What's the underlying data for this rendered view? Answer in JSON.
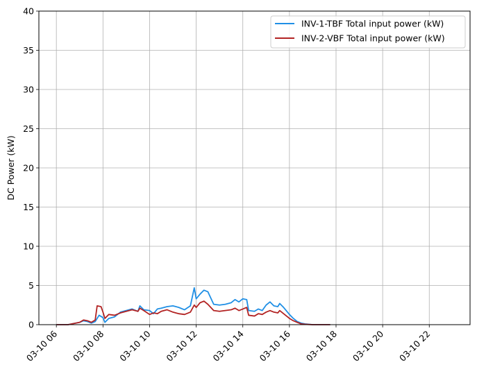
{
  "chart_data": {
    "type": "line",
    "title": "",
    "xlabel": "",
    "ylabel": "DC Power (kW)",
    "xlim": [
      "03-10 05:15",
      "03-10 23:45"
    ],
    "ylim": [
      0,
      40
    ],
    "yticks": [
      0,
      5,
      10,
      15,
      20,
      25,
      30,
      35,
      40
    ],
    "xticks": [
      {
        "t": "03-10 06:00",
        "label": "03-10 06"
      },
      {
        "t": "03-10 08:00",
        "label": "03-10 08"
      },
      {
        "t": "03-10 10:00",
        "label": "03-10 10"
      },
      {
        "t": "03-10 12:00",
        "label": "03-10 12"
      },
      {
        "t": "03-10 14:00",
        "label": "03-10 14"
      },
      {
        "t": "03-10 16:00",
        "label": "03-10 16"
      },
      {
        "t": "03-10 18:00",
        "label": "03-10 18"
      },
      {
        "t": "03-10 20:00",
        "label": "03-10 20"
      },
      {
        "t": "03-10 22:00",
        "label": "03-10 22"
      }
    ],
    "grid": true,
    "legend_position": "top-right",
    "series": [
      {
        "name": "INV-1-TBF Total input power (kW)",
        "color": "#1f8fe5",
        "points": [
          [
            "03-10 06:00",
            0
          ],
          [
            "03-10 06:30",
            0
          ],
          [
            "03-10 07:00",
            0.3
          ],
          [
            "03-10 07:10",
            0.5
          ],
          [
            "03-10 07:20",
            0.4
          ],
          [
            "03-10 07:30",
            0.2
          ],
          [
            "03-10 07:40",
            0.4
          ],
          [
            "03-10 07:50",
            1.2
          ],
          [
            "03-10 08:00",
            0.9
          ],
          [
            "03-10 08:05",
            0.3
          ],
          [
            "03-10 08:15",
            0.8
          ],
          [
            "03-10 08:30",
            1.0
          ],
          [
            "03-10 08:45",
            1.6
          ],
          [
            "03-10 09:00",
            1.8
          ],
          [
            "03-10 09:15",
            2.0
          ],
          [
            "03-10 09:30",
            1.7
          ],
          [
            "03-10 09:35",
            2.4
          ],
          [
            "03-10 09:45",
            1.9
          ],
          [
            "03-10 10:00",
            1.8
          ],
          [
            "03-10 10:10",
            1.4
          ],
          [
            "03-10 10:20",
            2.0
          ],
          [
            "03-10 10:30",
            2.1
          ],
          [
            "03-10 10:45",
            2.3
          ],
          [
            "03-10 11:00",
            2.4
          ],
          [
            "03-10 11:15",
            2.2
          ],
          [
            "03-10 11:30",
            1.9
          ],
          [
            "03-10 11:45",
            2.4
          ],
          [
            "03-10 11:55",
            4.7
          ],
          [
            "03-10 12:00",
            3.3
          ],
          [
            "03-10 12:10",
            3.9
          ],
          [
            "03-10 12:20",
            4.4
          ],
          [
            "03-10 12:30",
            4.2
          ],
          [
            "03-10 12:45",
            2.6
          ],
          [
            "03-10 13:00",
            2.5
          ],
          [
            "03-10 13:15",
            2.6
          ],
          [
            "03-10 13:30",
            2.8
          ],
          [
            "03-10 13:40",
            3.2
          ],
          [
            "03-10 13:50",
            2.9
          ],
          [
            "03-10 14:00",
            3.3
          ],
          [
            "03-10 14:10",
            3.2
          ],
          [
            "03-10 14:15",
            1.8
          ],
          [
            "03-10 14:30",
            1.7
          ],
          [
            "03-10 14:40",
            2.0
          ],
          [
            "03-10 14:50",
            1.8
          ],
          [
            "03-10 15:00",
            2.5
          ],
          [
            "03-10 15:10",
            2.9
          ],
          [
            "03-10 15:20",
            2.4
          ],
          [
            "03-10 15:30",
            2.3
          ],
          [
            "03-10 15:35",
            2.7
          ],
          [
            "03-10 15:45",
            2.2
          ],
          [
            "03-10 16:00",
            1.3
          ],
          [
            "03-10 16:10",
            0.8
          ],
          [
            "03-10 16:20",
            0.4
          ],
          [
            "03-10 16:30",
            0.2
          ],
          [
            "03-10 16:40",
            0.1
          ],
          [
            "03-10 17:00",
            0
          ],
          [
            "03-10 17:45",
            0
          ]
        ]
      },
      {
        "name": "INV-2-VBF Total input power (kW)",
        "color": "#b22222",
        "points": [
          [
            "03-10 06:00",
            0
          ],
          [
            "03-10 06:30",
            0
          ],
          [
            "03-10 07:00",
            0.3
          ],
          [
            "03-10 07:10",
            0.6
          ],
          [
            "03-10 07:20",
            0.5
          ],
          [
            "03-10 07:30",
            0.3
          ],
          [
            "03-10 07:40",
            0.6
          ],
          [
            "03-10 07:45",
            2.4
          ],
          [
            "03-10 07:55",
            2.3
          ],
          [
            "03-10 08:00",
            1.6
          ],
          [
            "03-10 08:05",
            0.8
          ],
          [
            "03-10 08:15",
            1.3
          ],
          [
            "03-10 08:30",
            1.2
          ],
          [
            "03-10 08:45",
            1.5
          ],
          [
            "03-10 09:00",
            1.7
          ],
          [
            "03-10 09:15",
            1.9
          ],
          [
            "03-10 09:30",
            1.7
          ],
          [
            "03-10 09:35",
            2.1
          ],
          [
            "03-10 09:45",
            1.8
          ],
          [
            "03-10 10:00",
            1.3
          ],
          [
            "03-10 10:10",
            1.5
          ],
          [
            "03-10 10:20",
            1.4
          ],
          [
            "03-10 10:30",
            1.7
          ],
          [
            "03-10 10:45",
            1.9
          ],
          [
            "03-10 11:00",
            1.6
          ],
          [
            "03-10 11:15",
            1.4
          ],
          [
            "03-10 11:30",
            1.3
          ],
          [
            "03-10 11:45",
            1.6
          ],
          [
            "03-10 11:55",
            2.5
          ],
          [
            "03-10 12:00",
            2.2
          ],
          [
            "03-10 12:10",
            2.8
          ],
          [
            "03-10 12:20",
            3.0
          ],
          [
            "03-10 12:30",
            2.6
          ],
          [
            "03-10 12:45",
            1.8
          ],
          [
            "03-10 13:00",
            1.7
          ],
          [
            "03-10 13:15",
            1.8
          ],
          [
            "03-10 13:30",
            1.9
          ],
          [
            "03-10 13:40",
            2.1
          ],
          [
            "03-10 13:50",
            1.8
          ],
          [
            "03-10 14:00",
            2.0
          ],
          [
            "03-10 14:10",
            2.2
          ],
          [
            "03-10 14:15",
            1.2
          ],
          [
            "03-10 14:30",
            1.1
          ],
          [
            "03-10 14:40",
            1.4
          ],
          [
            "03-10 14:50",
            1.3
          ],
          [
            "03-10 15:00",
            1.6
          ],
          [
            "03-10 15:10",
            1.8
          ],
          [
            "03-10 15:20",
            1.6
          ],
          [
            "03-10 15:30",
            1.5
          ],
          [
            "03-10 15:35",
            1.8
          ],
          [
            "03-10 15:45",
            1.4
          ],
          [
            "03-10 16:00",
            0.8
          ],
          [
            "03-10 16:10",
            0.5
          ],
          [
            "03-10 16:20",
            0.3
          ],
          [
            "03-10 16:30",
            0.1
          ],
          [
            "03-10 16:40",
            0.05
          ],
          [
            "03-10 17:00",
            0
          ],
          [
            "03-10 17:45",
            0
          ]
        ]
      }
    ]
  }
}
